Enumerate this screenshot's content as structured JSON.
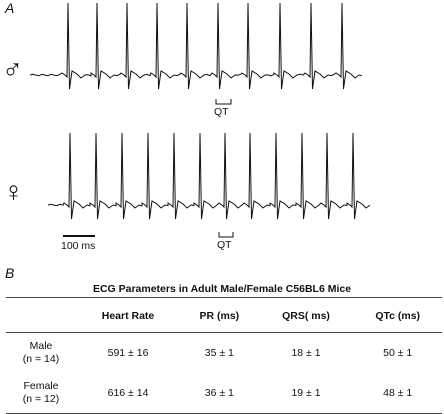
{
  "panel_a": {
    "letter": "A",
    "male_symbol": "♂",
    "female_symbol": "♀",
    "qt_label": "QT",
    "scale_bar_label": "100 ms"
  },
  "panel_b": {
    "letter": "B",
    "title": "ECG Parameters in Adult Male/Female C56BL6 Mice",
    "headers": [
      "",
      "Heart Rate",
      "PR (ms)",
      "QRS( ms)",
      "QTc (ms)"
    ],
    "rows": [
      {
        "label": "Male",
        "n": "(n = 14)",
        "values": [
          "591 ± 16",
          "35 ± 1",
          "18 ± 1",
          "50 ± 1"
        ]
      },
      {
        "label": "Female",
        "n": "(n = 12)",
        "values": [
          "616 ± 14",
          "36 ± 1",
          "19 ± 1",
          "48 ± 1"
        ]
      }
    ]
  }
}
